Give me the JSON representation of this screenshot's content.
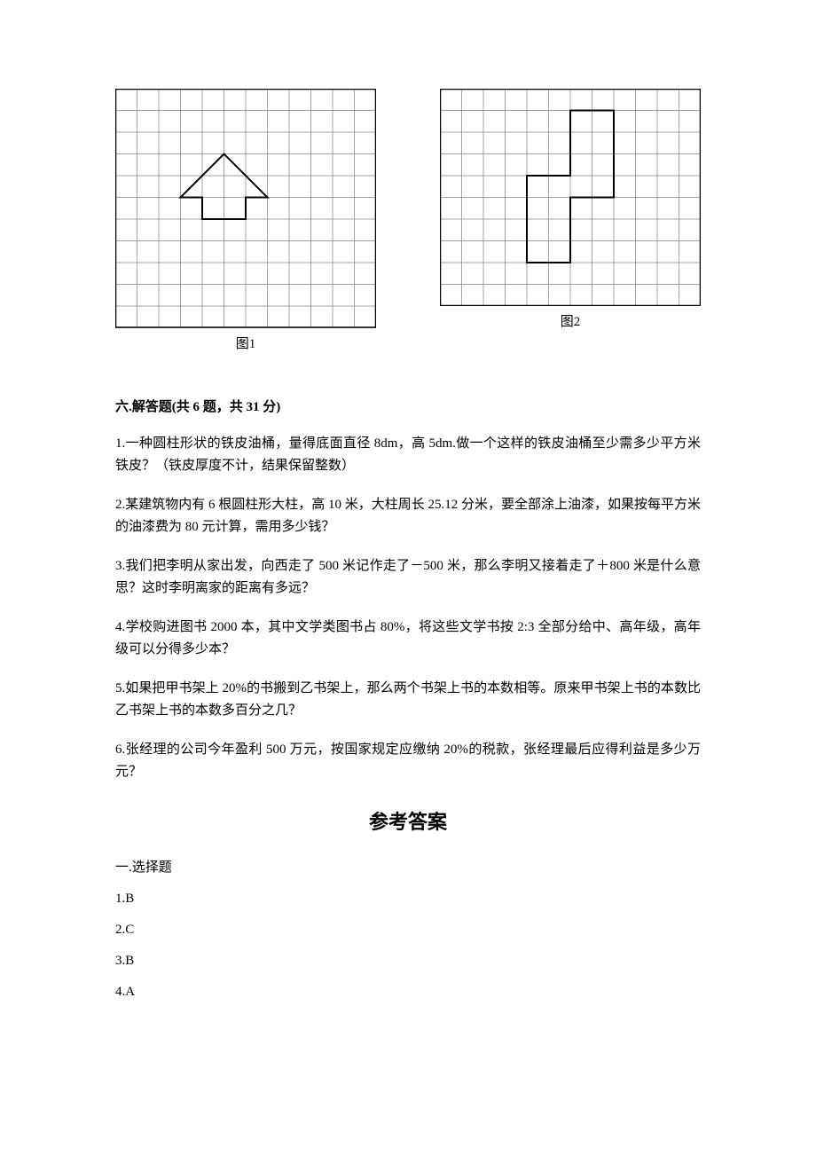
{
  "figure1": {
    "label": "图1",
    "grid": {
      "cols": 12,
      "rows": 11,
      "cell": 24.5,
      "stroke": "#808080",
      "border": "#000000"
    },
    "shape": {
      "stroke": "#000000",
      "stroke_width": 2,
      "points": [
        [
          5,
          3
        ],
        [
          7,
          5
        ],
        [
          6,
          5
        ],
        [
          6,
          6
        ],
        [
          4,
          6
        ],
        [
          4,
          5
        ],
        [
          3,
          5
        ]
      ]
    }
  },
  "figure2": {
    "label": "图2",
    "grid": {
      "cols": 12,
      "rows": 10,
      "cell": 24.5,
      "stroke": "#808080",
      "border": "#000000"
    },
    "shape": {
      "stroke": "#000000",
      "stroke_width": 2,
      "points": [
        [
          6,
          1
        ],
        [
          8,
          1
        ],
        [
          8,
          5
        ],
        [
          6,
          5
        ],
        [
          6,
          8
        ],
        [
          4,
          8
        ],
        [
          4,
          4
        ],
        [
          6,
          4
        ]
      ]
    }
  },
  "section6": {
    "heading": "六.解答题(共 6 题，共 31 分)",
    "questions": [
      "1.一种圆柱形状的铁皮油桶，量得底面直径 8dm，高 5dm.做一个这样的铁皮油桶至少需多少平方米铁皮？（铁皮厚度不计，结果保留整数）",
      "2.某建筑物内有 6 根圆柱形大柱，高 10 米，大柱周长 25.12 分米，要全部涂上油漆，如果按每平方米的油漆费为 80 元计算，需用多少钱？",
      "3.我们把李明从家出发，向西走了 500 米记作走了－500 米，那么李明又接着走了＋800 米是什么意思？这时李明离家的距离有多远？",
      "4.学校购进图书 2000 本，其中文学类图书占 80%，将这些文学书按 2:3 全部分给中、高年级，高年级可以分得多少本？",
      "5.如果把甲书架上 20%的书搬到乙书架上，那么两个书架上书的本数相等。原来甲书架上书的本数比乙书架上书的本数多百分之几？",
      "6.张经理的公司今年盈利 500 万元，按国家规定应缴纳 20%的税款，张经理最后应得利益是多少万元？"
    ]
  },
  "answers": {
    "title": "参考答案",
    "section_heading": "一.选择题",
    "items": [
      "1.B",
      "2.C",
      "3.B",
      "4.A"
    ]
  }
}
